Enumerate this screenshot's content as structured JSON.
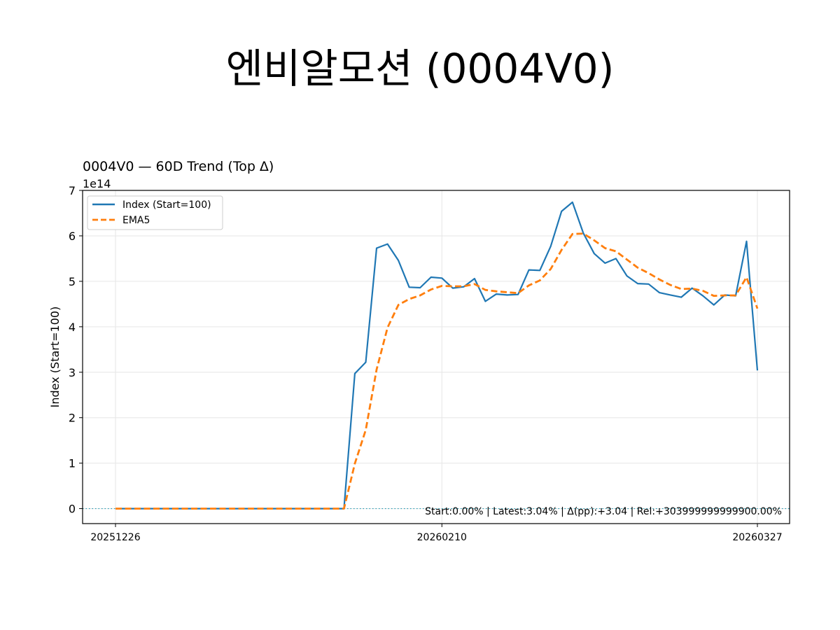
{
  "figure": {
    "title": "엔비알모션 (0004V0)"
  },
  "chart_data": {
    "type": "line",
    "title": "0004V0 — 60D Trend (Top Δ)",
    "ylabel": "Index (Start=100)",
    "xlabel": "",
    "y_offset_label": "1e14",
    "y_scale_factor": 100000000000000.0,
    "ylim": [
      -0.33,
      7.0
    ],
    "yticks": [
      0,
      1,
      2,
      3,
      4,
      5,
      6,
      7
    ],
    "xticks": [
      {
        "index": 0,
        "label": "20251226"
      },
      {
        "index": 30,
        "label": "20260210"
      },
      {
        "index": 59,
        "label": "20260327"
      }
    ],
    "grid": true,
    "legend_position": "top-left",
    "baseline": 0,
    "annotation": "Start:0.00% | Latest:3.04% | Δ(pp):+3.04 | Rel:+303999999999900.00%",
    "series": [
      {
        "name": "Index (Start=100)",
        "color": "#1f77b4",
        "style": "solid",
        "values": [
          0,
          0,
          0,
          0,
          0,
          0,
          0,
          0,
          0,
          0,
          0,
          0,
          0,
          0,
          0,
          0,
          0,
          0,
          0,
          0,
          0,
          0,
          2.97,
          3.22,
          5.73,
          5.82,
          5.46,
          4.87,
          4.86,
          5.09,
          5.07,
          4.85,
          4.88,
          5.06,
          4.56,
          4.72,
          4.7,
          4.71,
          5.25,
          5.24,
          5.77,
          6.54,
          6.74,
          6.06,
          5.61,
          5.4,
          5.5,
          5.12,
          4.95,
          4.94,
          4.75,
          4.7,
          4.65,
          4.85,
          4.68,
          4.48,
          4.7,
          4.68,
          5.88,
          3.04
        ]
      },
      {
        "name": "EMA5",
        "color": "#ff7f0e",
        "style": "dashed",
        "values": [
          0,
          0,
          0,
          0,
          0,
          0,
          0,
          0,
          0,
          0,
          0,
          0,
          0,
          0,
          0,
          0,
          0,
          0,
          0,
          0,
          0,
          0,
          0.99,
          1.73,
          3.06,
          3.98,
          4.48,
          4.61,
          4.69,
          4.82,
          4.9,
          4.89,
          4.89,
          4.94,
          4.81,
          4.78,
          4.76,
          4.74,
          4.91,
          5.02,
          5.27,
          5.69,
          6.04,
          6.05,
          5.9,
          5.73,
          5.66,
          5.48,
          5.3,
          5.18,
          5.04,
          4.92,
          4.83,
          4.84,
          4.79,
          4.68,
          4.69,
          4.69,
          5.09,
          4.4
        ]
      }
    ]
  }
}
